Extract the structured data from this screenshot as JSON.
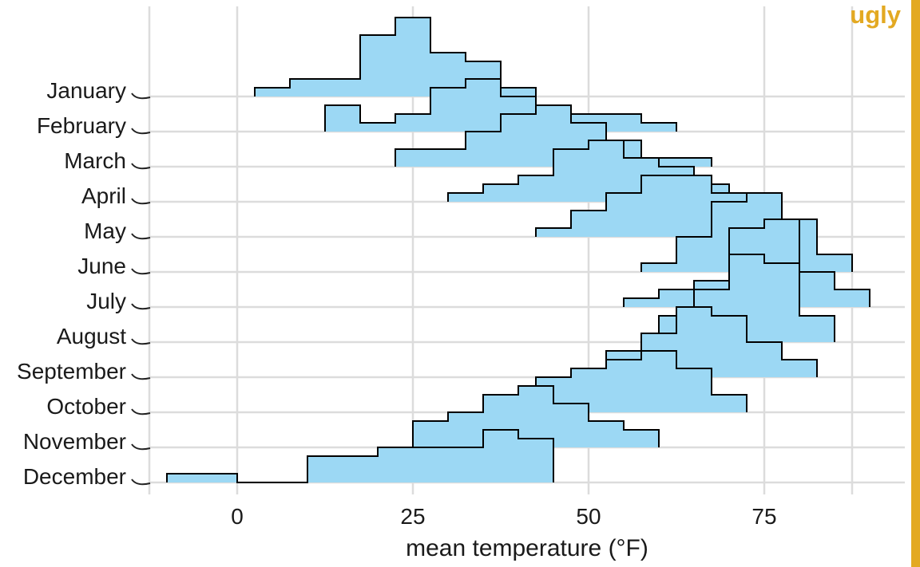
{
  "annotation": {
    "label": "ugly",
    "color": "#E3A922"
  },
  "chart_data": {
    "type": "ridgeline_histogram",
    "title": "",
    "xlabel": "mean temperature (°F)",
    "ylabel": "",
    "x_ticks": [
      0,
      25,
      50,
      75
    ],
    "x_minor_ticks": [
      -12.5,
      87.5
    ],
    "xlim": [
      -12.5,
      95
    ],
    "bin_width": 5,
    "value_unit": "days",
    "grid": true,
    "legend": "none",
    "categories": [
      "January",
      "February",
      "March",
      "April",
      "May",
      "June",
      "July",
      "August",
      "September",
      "October",
      "November",
      "December"
    ],
    "series": [
      {
        "name": "January",
        "bin_start": 2.5,
        "counts": [
          1,
          2,
          2,
          7,
          9,
          5,
          4,
          1
        ]
      },
      {
        "name": "February",
        "bin_start": 12.5,
        "counts": [
          3,
          1,
          2,
          5,
          6,
          4,
          3,
          2,
          2,
          1
        ]
      },
      {
        "name": "March",
        "bin_start": 22.5,
        "counts": [
          2,
          2,
          4,
          6,
          7,
          5,
          3,
          1,
          1
        ]
      },
      {
        "name": "April",
        "bin_start": 30,
        "counts": [
          1,
          2,
          3,
          6,
          7,
          5,
          4,
          2
        ]
      },
      {
        "name": "May",
        "bin_start": 42.5,
        "counts": [
          1,
          3,
          5,
          7,
          7,
          5,
          2,
          1
        ]
      },
      {
        "name": "June",
        "bin_start": 57.5,
        "counts": [
          1,
          4,
          8,
          9,
          6,
          2
        ]
      },
      {
        "name": "July",
        "bin_start": 55,
        "counts": [
          1,
          2,
          3,
          9,
          10,
          4,
          2
        ]
      },
      {
        "name": "August",
        "bin_start": 60,
        "counts": [
          3,
          6,
          10,
          9,
          3
        ]
      },
      {
        "name": "September",
        "bin_start": 47.5,
        "counts": [
          1,
          3,
          5,
          8,
          7,
          4,
          2
        ]
      },
      {
        "name": "October",
        "bin_start": 37.5,
        "counts": [
          2,
          4,
          5,
          6,
          7,
          5,
          2
        ]
      },
      {
        "name": "November",
        "bin_start": 25,
        "counts": [
          3,
          4,
          6,
          7,
          5,
          3,
          2
        ]
      },
      {
        "name": "December",
        "bin_start": -10,
        "counts": [
          1,
          1,
          0,
          0,
          3,
          3,
          4,
          4,
          4,
          6,
          5
        ]
      }
    ],
    "colors": {
      "fill": "#9CD8F4",
      "stroke": "#000000",
      "grid": "#DCDCDC",
      "text": "#1A1A1A",
      "tick_hook": "#222222"
    }
  }
}
